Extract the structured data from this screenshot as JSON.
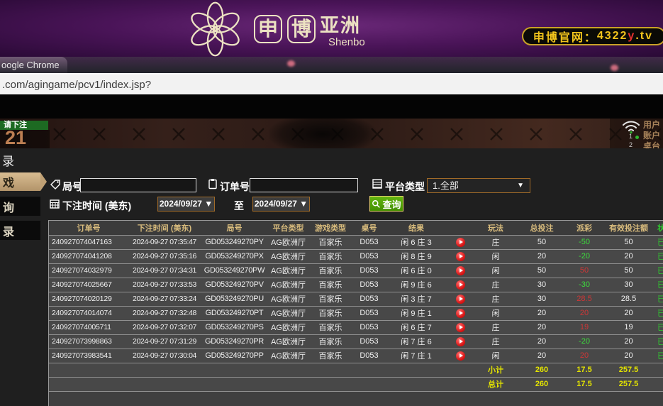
{
  "header": {
    "brand_char_1": "申",
    "brand_char_2": "博",
    "brand_region": "亚洲",
    "brand_en": "Shenbo",
    "official_label": "申博官网：",
    "official_num": "4322",
    "official_y": "y",
    "official_tld": ".tv"
  },
  "browser": {
    "window_title": "oogle Chrome",
    "url": ".com/agingame/pcv1/index.jsp?"
  },
  "video": {
    "bet_prompt": "请下注",
    "countdown": "21",
    "info_labels": [
      "用户",
      "账户",
      "桌台"
    ],
    "seat_numbers": [
      "1",
      "2"
    ]
  },
  "page": {
    "title_partial": "录"
  },
  "sidebar": {
    "items": [
      {
        "label": "戏",
        "active": true
      },
      {
        "label": "询",
        "active": false
      },
      {
        "label": "录",
        "active": false
      }
    ]
  },
  "form": {
    "round_label": "局号",
    "round_value": "",
    "order_label": "订单号",
    "order_value": "",
    "time_label": "下注时间 (美东)",
    "date_from": "2024/09/27 ▼",
    "to_label": "至",
    "date_to": "2024/09/27 ▼",
    "platform_label": "平台类型",
    "platform_value": "1.全部",
    "search_label": "查询"
  },
  "table": {
    "headers": [
      "订单号",
      "下注时间 (美东)",
      "局号",
      "平台类型",
      "游戏类型",
      "桌号",
      "结果",
      "",
      "玩法",
      "总投注",
      "派彩",
      "有效投注额",
      "状态"
    ],
    "rows": [
      {
        "order": "240927074047163",
        "time": "2024-09-27 07:35:47",
        "round": "GD053249270PY",
        "platform": "AG欧洲厅",
        "game": "百家乐",
        "tbl": "D053",
        "result": "闲 6 庄 3",
        "method": "庄",
        "total": "50",
        "payout": "-50",
        "valid": "50",
        "status": "已结算"
      },
      {
        "order": "240927074041208",
        "time": "2024-09-27 07:35:16",
        "round": "GD053249270PX",
        "platform": "AG欧洲厅",
        "game": "百家乐",
        "tbl": "D053",
        "result": "闲 8 庄 9",
        "method": "闲",
        "total": "20",
        "payout": "-20",
        "valid": "20",
        "status": "已结算"
      },
      {
        "order": "240927074032979",
        "time": "2024-09-27 07:34:31",
        "round": "GD053249270PW",
        "platform": "AG欧洲厅",
        "game": "百家乐",
        "tbl": "D053",
        "result": "闲 6 庄 0",
        "method": "闲",
        "total": "50",
        "payout": "50",
        "valid": "50",
        "status": "已结算"
      },
      {
        "order": "240927074025667",
        "time": "2024-09-27 07:33:53",
        "round": "GD053249270PV",
        "platform": "AG欧洲厅",
        "game": "百家乐",
        "tbl": "D053",
        "result": "闲 9 庄 6",
        "method": "庄",
        "total": "30",
        "payout": "-30",
        "valid": "30",
        "status": "已结算"
      },
      {
        "order": "240927074020129",
        "time": "2024-09-27 07:33:24",
        "round": "GD053249270PU",
        "platform": "AG欧洲厅",
        "game": "百家乐",
        "tbl": "D053",
        "result": "闲 3 庄 7",
        "method": "庄",
        "total": "30",
        "payout": "28.5",
        "valid": "28.5",
        "status": "已结算"
      },
      {
        "order": "240927074014074",
        "time": "2024-09-27 07:32:48",
        "round": "GD053249270PT",
        "platform": "AG欧洲厅",
        "game": "百家乐",
        "tbl": "D053",
        "result": "闲 9 庄 1",
        "method": "闲",
        "total": "20",
        "payout": "20",
        "valid": "20",
        "status": "已结算"
      },
      {
        "order": "240927074005711",
        "time": "2024-09-27 07:32:07",
        "round": "GD053249270PS",
        "platform": "AG欧洲厅",
        "game": "百家乐",
        "tbl": "D053",
        "result": "闲 6 庄 7",
        "method": "庄",
        "total": "20",
        "payout": "19",
        "valid": "19",
        "status": "已结算"
      },
      {
        "order": "240927073998863",
        "time": "2024-09-27 07:31:29",
        "round": "GD053249270PR",
        "platform": "AG欧洲厅",
        "game": "百家乐",
        "tbl": "D053",
        "result": "闲 7 庄 6",
        "method": "庄",
        "total": "20",
        "payout": "-20",
        "valid": "20",
        "status": "已结算"
      },
      {
        "order": "240927073983541",
        "time": "2024-09-27 07:30:04",
        "round": "GD053249270PP",
        "platform": "AG欧洲厅",
        "game": "百家乐",
        "tbl": "D053",
        "result": "闲 7 庄 1",
        "method": "闲",
        "total": "20",
        "payout": "20",
        "valid": "20",
        "status": "已结算"
      }
    ],
    "subtotal_label": "小计",
    "subtotal": {
      "total_bet": "260",
      "payout": "17.5",
      "valid_bet": "257.5"
    },
    "total_label": "总计",
    "total": {
      "total_bet": "260",
      "payout": "17.5",
      "valid_bet": "257.5"
    }
  },
  "colors": {
    "header_gold": "#d9bc7d",
    "payout_win_red": "#cf3636",
    "payout_loss_green": "#3cdd3c",
    "totals_yellow": "#e4e400",
    "status_green": "#2ecc2e",
    "search_button_green": "#4ea600",
    "date_border_orange": "#a06a28",
    "active_tab_tan": "#c9a97c",
    "brand_cream": "#ece2c2",
    "pill_gold": "#f2c41c",
    "pill_red": "#e83030"
  }
}
